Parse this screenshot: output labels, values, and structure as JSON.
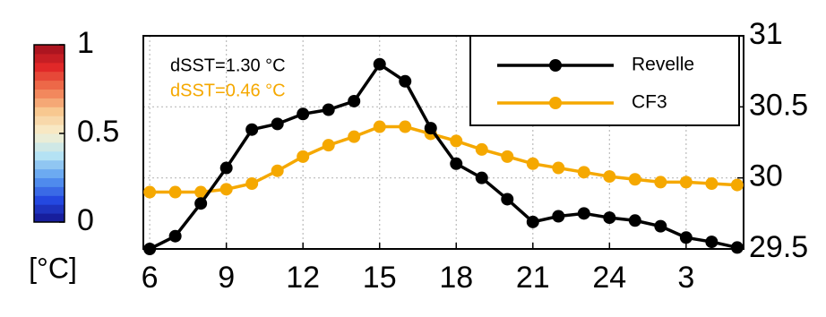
{
  "chart_data": {
    "type": "line",
    "x": [
      6,
      7,
      8,
      9,
      10,
      11,
      12,
      13,
      14,
      15,
      16,
      17,
      18,
      19,
      20,
      21,
      22,
      23,
      24,
      25,
      26,
      27,
      28,
      29
    ],
    "series": [
      {
        "name": "Revelle",
        "color": "#000000",
        "values": [
          29.5,
          29.59,
          29.82,
          30.07,
          30.34,
          30.38,
          30.45,
          30.48,
          30.54,
          30.8,
          30.68,
          30.35,
          30.1,
          30.0,
          29.85,
          29.69,
          29.73,
          29.75,
          29.72,
          29.7,
          29.66,
          29.58,
          29.55,
          29.51
        ]
      },
      {
        "name": "CF3",
        "color": "#f5a800",
        "values": [
          29.9,
          29.9,
          29.9,
          29.92,
          29.96,
          30.05,
          30.15,
          30.23,
          30.29,
          30.36,
          30.36,
          30.31,
          30.26,
          30.2,
          30.15,
          30.1,
          30.07,
          30.04,
          30.01,
          29.99,
          29.97,
          29.97,
          29.96,
          29.95
        ]
      }
    ],
    "xlim": [
      5.75,
      29.25
    ],
    "xticks": [
      6,
      9,
      12,
      15,
      18,
      21,
      24,
      {
        "value": 27,
        "label": "3"
      }
    ],
    "ylim": [
      29.5,
      31
    ],
    "yticks": [
      29.5,
      30,
      30.5,
      31
    ],
    "y_axis_side": "right",
    "grid": true,
    "legend": "upper right",
    "annotations": [
      {
        "text": "dSST=1.30 °C",
        "color": "#000000"
      },
      {
        "text": "dSST=0.46 °C",
        "color": "#f5a800"
      }
    ],
    "colorbar": {
      "lim": [
        0,
        1
      ],
      "ticks": [
        0,
        0.5,
        1
      ],
      "label": "[°C]",
      "colormap": [
        "#14148c",
        "#2448e0",
        "#5a9cf0",
        "#b4e2f4",
        "#f8f0d0",
        "#f8c890",
        "#f07850",
        "#e02828",
        "#a0101e"
      ]
    }
  }
}
